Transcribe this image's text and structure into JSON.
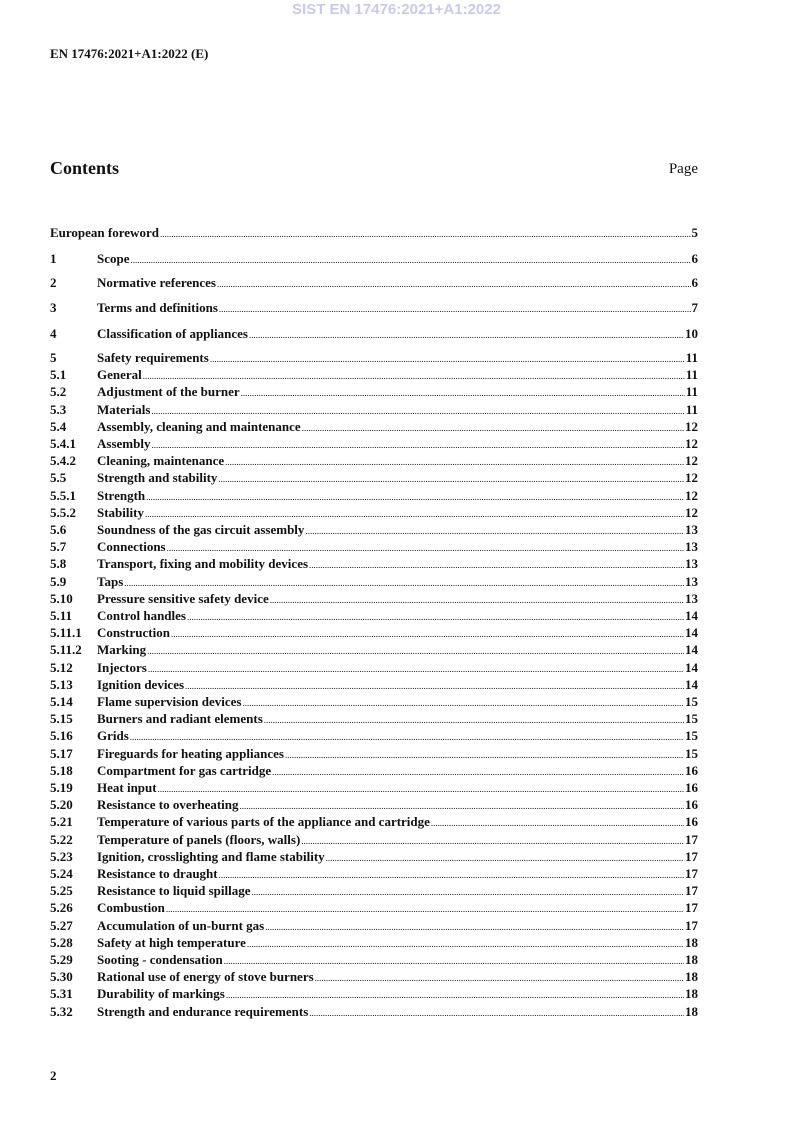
{
  "watermark": "SIST EN 17476:2021+A1:2022",
  "header": "EN 17476:2021+A1:2022 (E)",
  "contents_title": "Contents",
  "page_label": "Page",
  "entries": [
    {
      "num": "",
      "title": "European foreword",
      "page": "5"
    },
    {
      "num": "1",
      "title": "Scope",
      "page": "6"
    },
    {
      "num": "2",
      "title": "Normative references",
      "page": "6"
    },
    {
      "num": "3",
      "title": "Terms and definitions",
      "page": "7"
    },
    {
      "num": "4",
      "title": "Classification of appliances",
      "page": "10"
    },
    {
      "num": "5",
      "title": "Safety requirements",
      "page": "11"
    },
    {
      "num": "5.1",
      "title": "General",
      "page": "11"
    },
    {
      "num": "5.2",
      "title": "Adjustment of the burner",
      "page": "11"
    },
    {
      "num": "5.3",
      "title": "Materials",
      "page": "11"
    },
    {
      "num": "5.4",
      "title": "Assembly, cleaning and maintenance",
      "page": "12"
    },
    {
      "num": "5.4.1",
      "title": "Assembly",
      "page": "12"
    },
    {
      "num": "5.4.2",
      "title": "Cleaning, maintenance",
      "page": "12"
    },
    {
      "num": "5.5",
      "title": "Strength and stability",
      "page": "12"
    },
    {
      "num": "5.5.1",
      "title": "Strength",
      "page": "12"
    },
    {
      "num": "5.5.2",
      "title": "Stability",
      "page": "12"
    },
    {
      "num": "5.6",
      "title": "Soundness of the gas circuit assembly",
      "page": "13"
    },
    {
      "num": "5.7",
      "title": "Connections",
      "page": "13"
    },
    {
      "num": "5.8",
      "title": "Transport, fixing and mobility devices",
      "page": "13"
    },
    {
      "num": "5.9",
      "title": "Taps",
      "page": "13"
    },
    {
      "num": "5.10",
      "title": "Pressure sensitive safety device",
      "page": "13"
    },
    {
      "num": "5.11",
      "title": "Control handles",
      "page": "14"
    },
    {
      "num": "5.11.1",
      "title": "Construction",
      "page": "14"
    },
    {
      "num": "5.11.2",
      "title": "Marking",
      "page": "14"
    },
    {
      "num": "5.12",
      "title": "Injectors",
      "page": "14"
    },
    {
      "num": "5.13",
      "title": "Ignition devices",
      "page": "14"
    },
    {
      "num": "5.14",
      "title": "Flame supervision devices",
      "page": "15"
    },
    {
      "num": "5.15",
      "title": "Burners and radiant elements",
      "page": "15"
    },
    {
      "num": "5.16",
      "title": "Grids",
      "page": "15"
    },
    {
      "num": "5.17",
      "title": "Fireguards for heating appliances",
      "page": "15"
    },
    {
      "num": "5.18",
      "title": "Compartment for gas cartridge",
      "page": "16"
    },
    {
      "num": "5.19",
      "title": "Heat input",
      "page": "16"
    },
    {
      "num": "5.20",
      "title": "Resistance to overheating",
      "page": "16"
    },
    {
      "num": "5.21",
      "title": "Temperature of various parts of the appliance and cartridge",
      "page": "16"
    },
    {
      "num": "5.22",
      "title": "Temperature of panels (floors, walls)",
      "page": "17"
    },
    {
      "num": "5.23",
      "title": "Ignition, crosslighting and flame stability",
      "page": "17"
    },
    {
      "num": "5.24",
      "title": "Resistance to draught",
      "page": "17"
    },
    {
      "num": "5.25",
      "title": "Resistance to liquid spillage",
      "page": "17"
    },
    {
      "num": "5.26",
      "title": "Combustion",
      "page": "17"
    },
    {
      "num": "5.27",
      "title": "Accumulation of un-burnt gas",
      "page": "17"
    },
    {
      "num": "5.28",
      "title": "Safety at high temperature",
      "page": "18"
    },
    {
      "num": "5.29",
      "title": "Sooting - condensation",
      "page": "18"
    },
    {
      "num": "5.30",
      "title": "Rational use of energy of stove burners",
      "page": "18"
    },
    {
      "num": "5.31",
      "title": "Durability of markings",
      "page": "18"
    },
    {
      "num": "5.32",
      "title": "Strength and endurance requirements",
      "page": "18"
    }
  ],
  "page_number": "2",
  "colors": {
    "watermark": "#c9c9ee",
    "text": "#111111"
  }
}
